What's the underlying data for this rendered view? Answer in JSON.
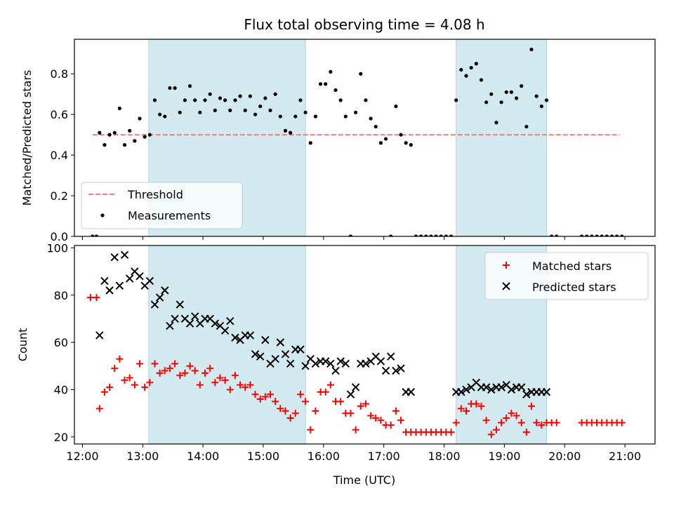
{
  "chart_data": [
    {
      "type": "scatter",
      "panel": "top",
      "title": "Flux total observing time = 4.08 h",
      "ylabel": "Matched/Predicted stars",
      "xlabel": "",
      "ylim": [
        0,
        0.97
      ],
      "yticks": [
        0.0,
        0.2,
        0.4,
        0.6,
        0.8
      ],
      "ytick_labels": [
        "0.0",
        "0.2",
        "0.4",
        "0.6",
        "0.8"
      ],
      "xlim": [
        "11:52",
        "21:30"
      ],
      "grid": false,
      "legend_position": "lower left",
      "shaded_intervals": [
        {
          "start": "13:06",
          "end": "15:42",
          "color": "#d3eaf0"
        },
        {
          "start": "18:12",
          "end": "19:42",
          "color": "#d3eaf0"
        }
      ],
      "threshold": {
        "name": "Threshold",
        "value": 0.5,
        "x_start": "12:10",
        "x_end": "20:55",
        "color": "#f08080",
        "style": "dashed"
      },
      "series": [
        {
          "name": "Measurements",
          "color": "#000000",
          "marker": "dot",
          "x": [
            "12:10",
            "12:14",
            "12:17",
            "12:22",
            "12:27",
            "12:32",
            "12:37",
            "12:42",
            "12:47",
            "12:52",
            "12:57",
            "13:02",
            "13:07",
            "13:12",
            "13:17",
            "13:22",
            "13:27",
            "13:32",
            "13:37",
            "13:42",
            "13:47",
            "13:52",
            "13:57",
            "14:02",
            "14:07",
            "14:12",
            "14:17",
            "14:22",
            "14:27",
            "14:32",
            "14:37",
            "14:42",
            "14:47",
            "14:52",
            "14:57",
            "15:02",
            "15:07",
            "15:12",
            "15:17",
            "15:22",
            "15:27",
            "15:32",
            "15:37",
            "15:42",
            "15:47",
            "15:52",
            "15:57",
            "16:02",
            "16:07",
            "16:12",
            "16:17",
            "16:22",
            "16:27",
            "16:32",
            "16:37",
            "16:42",
            "16:47",
            "16:52",
            "16:57",
            "17:02",
            "17:07",
            "17:12",
            "17:17",
            "17:22",
            "17:27",
            "17:32",
            "17:37",
            "17:42",
            "17:47",
            "17:52",
            "17:57",
            "18:02",
            "18:07",
            "18:12",
            "18:17",
            "18:22",
            "18:27",
            "18:32",
            "18:37",
            "18:42",
            "18:47",
            "18:52",
            "18:57",
            "19:02",
            "19:07",
            "19:12",
            "19:17",
            "19:22",
            "19:27",
            "19:32",
            "19:37",
            "19:42",
            "19:47",
            "19:52",
            "20:17",
            "20:22",
            "20:27",
            "20:32",
            "20:37",
            "20:42",
            "20:47",
            "20:52",
            "20:57"
          ],
          "y": [
            0.0,
            0.0,
            0.51,
            0.45,
            0.5,
            0.51,
            0.63,
            0.45,
            0.52,
            0.47,
            0.58,
            0.49,
            0.5,
            0.67,
            0.6,
            0.59,
            0.73,
            0.73,
            0.61,
            0.67,
            0.74,
            0.67,
            0.61,
            0.67,
            0.7,
            0.62,
            0.68,
            0.67,
            0.62,
            0.67,
            0.69,
            0.62,
            0.69,
            0.6,
            0.64,
            0.68,
            0.62,
            0.7,
            0.59,
            0.52,
            0.51,
            0.59,
            0.67,
            0.61,
            0.46,
            0.59,
            0.75,
            0.75,
            0.81,
            0.72,
            0.67,
            0.59,
            0.0,
            0.61,
            0.8,
            0.67,
            0.58,
            0.54,
            0.46,
            0.48,
            0.0,
            0.64,
            0.5,
            0.46,
            0.45,
            0.0,
            0.0,
            0.0,
            0.0,
            0.0,
            0.0,
            0.0,
            0.0,
            0.67,
            0.82,
            0.79,
            0.83,
            0.85,
            0.77,
            0.66,
            0.7,
            0.56,
            0.66,
            0.71,
            0.71,
            0.68,
            0.74,
            0.54,
            0.92,
            0.69,
            0.64,
            0.67,
            0.0,
            0.0,
            0.0,
            0.0,
            0.0,
            0.0,
            0.0,
            0.0,
            0.0,
            0.0,
            0.0
          ]
        }
      ]
    },
    {
      "type": "scatter",
      "panel": "bottom",
      "xlabel": "Time (UTC)",
      "ylabel": "Count",
      "ylim": [
        17,
        101
      ],
      "yticks": [
        20,
        40,
        60,
        80,
        100
      ],
      "ytick_labels": [
        "20",
        "40",
        "60",
        "80",
        "100"
      ],
      "xticks": [
        "12:00",
        "13:00",
        "14:00",
        "15:00",
        "16:00",
        "17:00",
        "18:00",
        "19:00",
        "20:00",
        "21:00"
      ],
      "xlim": [
        "11:52",
        "21:30"
      ],
      "grid": false,
      "legend_position": "upper right",
      "shaded_intervals": [
        {
          "start": "13:06",
          "end": "15:42",
          "color": "#d3eaf0"
        },
        {
          "start": "18:12",
          "end": "19:42",
          "color": "#d3eaf0"
        }
      ],
      "series": [
        {
          "name": "Matched stars",
          "color": "#ff0000",
          "marker": "plus",
          "x": [
            "12:08",
            "12:14",
            "12:17",
            "12:22",
            "12:27",
            "12:32",
            "12:37",
            "12:42",
            "12:47",
            "12:52",
            "12:57",
            "13:02",
            "13:07",
            "13:12",
            "13:17",
            "13:22",
            "13:27",
            "13:32",
            "13:37",
            "13:42",
            "13:47",
            "13:52",
            "13:57",
            "14:02",
            "14:07",
            "14:12",
            "14:17",
            "14:22",
            "14:27",
            "14:32",
            "14:37",
            "14:42",
            "14:47",
            "14:52",
            "14:57",
            "15:02",
            "15:07",
            "15:12",
            "15:17",
            "15:22",
            "15:27",
            "15:32",
            "15:37",
            "15:42",
            "15:47",
            "15:52",
            "15:57",
            "16:02",
            "16:07",
            "16:12",
            "16:17",
            "16:22",
            "16:27",
            "16:32",
            "16:37",
            "16:42",
            "16:47",
            "16:52",
            "16:57",
            "17:02",
            "17:07",
            "17:12",
            "17:17",
            "17:22",
            "17:27",
            "17:32",
            "17:37",
            "17:42",
            "17:47",
            "17:52",
            "17:57",
            "18:02",
            "18:07",
            "18:12",
            "18:17",
            "18:22",
            "18:27",
            "18:32",
            "18:37",
            "18:42",
            "18:47",
            "18:52",
            "18:57",
            "19:02",
            "19:07",
            "19:12",
            "19:17",
            "19:22",
            "19:27",
            "19:32",
            "19:37",
            "19:42",
            "19:47",
            "19:52",
            "20:17",
            "20:22",
            "20:27",
            "20:32",
            "20:37",
            "20:42",
            "20:47",
            "20:52",
            "20:57"
          ],
          "y": [
            79,
            79,
            32,
            39,
            41,
            49,
            53,
            44,
            45,
            42,
            51,
            41,
            43,
            51,
            47,
            48,
            49,
            51,
            46,
            47,
            50,
            48,
            42,
            47,
            49,
            43,
            45,
            44,
            40,
            46,
            42,
            41,
            42,
            38,
            36,
            37,
            38,
            35,
            32,
            31,
            28,
            30,
            38,
            35,
            23,
            31,
            39,
            39,
            42,
            35,
            35,
            30,
            30,
            23,
            33,
            34,
            29,
            28,
            27,
            25,
            25,
            31,
            27,
            22,
            22,
            22,
            22,
            22,
            22,
            22,
            22,
            22,
            22,
            26,
            32,
            31,
            34,
            34,
            33,
            27,
            21,
            23,
            26,
            28,
            30,
            29,
            26,
            22,
            33,
            26,
            25,
            26,
            26,
            26,
            26,
            26,
            26,
            26,
            26,
            26,
            26,
            26,
            26
          ]
        },
        {
          "name": "Predicted stars",
          "color": "#000000",
          "marker": "x",
          "x": [
            "12:17",
            "12:22",
            "12:27",
            "12:32",
            "12:37",
            "12:42",
            "12:47",
            "12:52",
            "12:57",
            "13:02",
            "13:07",
            "13:12",
            "13:17",
            "13:22",
            "13:27",
            "13:32",
            "13:37",
            "13:42",
            "13:47",
            "13:52",
            "13:57",
            "14:02",
            "14:07",
            "14:12",
            "14:17",
            "14:22",
            "14:27",
            "14:32",
            "14:37",
            "14:42",
            "14:47",
            "14:52",
            "14:57",
            "15:02",
            "15:07",
            "15:12",
            "15:17",
            "15:22",
            "15:27",
            "15:32",
            "15:37",
            "15:42",
            "15:47",
            "15:52",
            "15:57",
            "16:02",
            "16:07",
            "16:12",
            "16:17",
            "16:22",
            "16:27",
            "16:32",
            "16:37",
            "16:42",
            "16:47",
            "16:52",
            "16:57",
            "17:02",
            "17:07",
            "17:12",
            "17:17",
            "17:22",
            "17:27",
            "18:12",
            "18:17",
            "18:22",
            "18:27",
            "18:32",
            "18:37",
            "18:42",
            "18:47",
            "18:52",
            "18:57",
            "19:02",
            "19:07",
            "19:12",
            "19:17",
            "19:22",
            "19:27",
            "19:32",
            "19:37",
            "19:42"
          ],
          "y": [
            63,
            86,
            82,
            96,
            84,
            97,
            87,
            90,
            88,
            84,
            86,
            76,
            79,
            82,
            67,
            70,
            76,
            70,
            68,
            71,
            68,
            70,
            70,
            68,
            67,
            65,
            69,
            62,
            61,
            63,
            63,
            55,
            54,
            61,
            51,
            53,
            60,
            55,
            51,
            57,
            57,
            50,
            53,
            51,
            52,
            52,
            51,
            48,
            52,
            51,
            38,
            41,
            51,
            51,
            52,
            54,
            52,
            48,
            54,
            48,
            49,
            39,
            39,
            39,
            39,
            40,
            41,
            43,
            41,
            41,
            40,
            41,
            41,
            42,
            40,
            41,
            41,
            38,
            39,
            39,
            39,
            39
          ]
        }
      ]
    }
  ]
}
